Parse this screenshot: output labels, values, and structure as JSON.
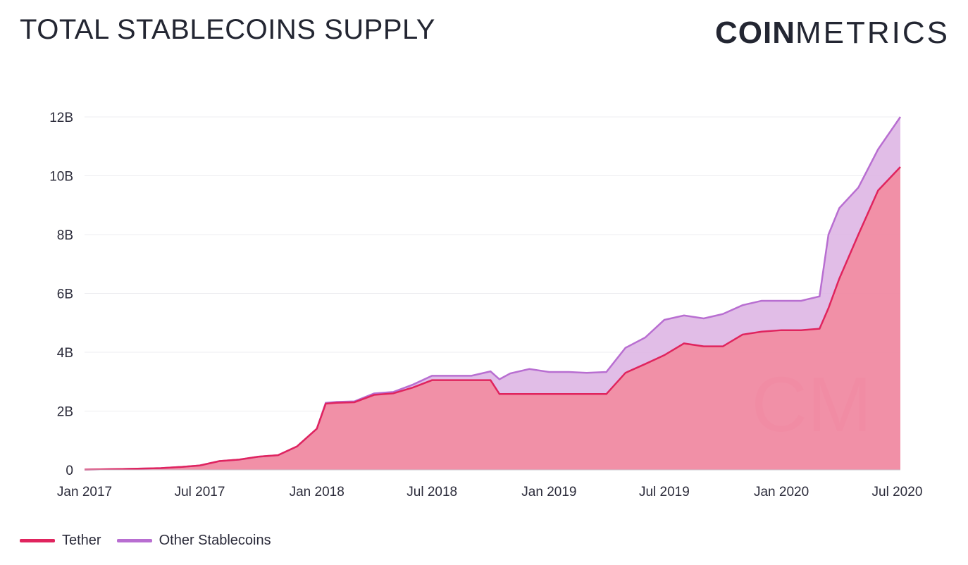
{
  "header": {
    "title": "TOTAL STABLECOINS SUPPLY",
    "logo_bold": "COIN",
    "logo_light": "METRICS"
  },
  "colors": {
    "tether_line": "#e0245e",
    "tether_fill": "#f08aa2",
    "other_line": "#b86ed1",
    "other_fill": "#dcb2e3",
    "grid": "#ededf0",
    "watermark": "#e8778f"
  },
  "legend": {
    "tether_label": "Tether",
    "other_label": "Other Stablecoins"
  },
  "chart_data": {
    "type": "area",
    "stacked": true,
    "title": "TOTAL STABLECOINS SUPPLY",
    "xlabel": "",
    "ylabel": "",
    "ylim": [
      0,
      12
    ],
    "y_unit": "B",
    "y_ticks": [
      0,
      2,
      4,
      6,
      8,
      10,
      12
    ],
    "y_tick_labels": [
      "0",
      "2B",
      "4B",
      "6B",
      "8B",
      "10B",
      "12B"
    ],
    "x_range": [
      "2017-01-01",
      "2020-07-06"
    ],
    "x_ticks": [
      "2017-01-01",
      "2017-07-01",
      "2018-01-01",
      "2018-07-01",
      "2019-01-01",
      "2019-07-01",
      "2020-01-01",
      "2020-07-01"
    ],
    "x_tick_labels": [
      "Jan 2017",
      "Jul 2017",
      "Jan 2018",
      "Jul 2018",
      "Jan 2019",
      "Jul 2019",
      "Jan 2020",
      "Jul 2020"
    ],
    "grid": true,
    "legend_position": "bottom-left",
    "x": [
      "2017-01-01",
      "2017-03-01",
      "2017-05-01",
      "2017-06-01",
      "2017-07-01",
      "2017-08-01",
      "2017-09-01",
      "2017-10-01",
      "2017-11-01",
      "2017-12-01",
      "2018-01-01",
      "2018-01-15",
      "2018-02-01",
      "2018-03-01",
      "2018-04-01",
      "2018-05-01",
      "2018-06-01",
      "2018-07-01",
      "2018-08-01",
      "2018-09-01",
      "2018-10-01",
      "2018-10-15",
      "2018-11-01",
      "2018-12-01",
      "2019-01-01",
      "2019-02-01",
      "2019-03-01",
      "2019-04-01",
      "2019-05-01",
      "2019-06-01",
      "2019-07-01",
      "2019-08-01",
      "2019-09-01",
      "2019-10-01",
      "2019-11-01",
      "2019-12-01",
      "2020-01-01",
      "2020-02-01",
      "2020-03-01",
      "2020-03-15",
      "2020-04-01",
      "2020-05-01",
      "2020-06-01",
      "2020-07-06"
    ],
    "series": [
      {
        "name": "Tether",
        "values": [
          0.01,
          0.03,
          0.06,
          0.1,
          0.15,
          0.3,
          0.35,
          0.45,
          0.5,
          0.8,
          1.4,
          2.25,
          2.28,
          2.3,
          2.55,
          2.6,
          2.8,
          3.05,
          3.05,
          3.05,
          3.05,
          2.58,
          2.58,
          2.58,
          2.58,
          2.58,
          2.58,
          2.58,
          3.3,
          3.6,
          3.9,
          4.3,
          4.2,
          4.2,
          4.6,
          4.7,
          4.75,
          4.75,
          4.8,
          5.5,
          6.5,
          8.0,
          9.5,
          10.3
        ]
      },
      {
        "name": "Other Stablecoins",
        "values": [
          0.0,
          0.0,
          0.0,
          0.0,
          0.0,
          0.0,
          0.0,
          0.0,
          0.0,
          0.0,
          0.0,
          0.03,
          0.03,
          0.03,
          0.05,
          0.05,
          0.1,
          0.15,
          0.15,
          0.15,
          0.3,
          0.5,
          0.7,
          0.85,
          0.75,
          0.75,
          0.72,
          0.75,
          0.85,
          0.9,
          1.2,
          0.95,
          0.95,
          1.1,
          1.0,
          1.05,
          1.0,
          1.0,
          1.1,
          2.5,
          2.4,
          1.6,
          1.4,
          1.7
        ]
      }
    ]
  }
}
